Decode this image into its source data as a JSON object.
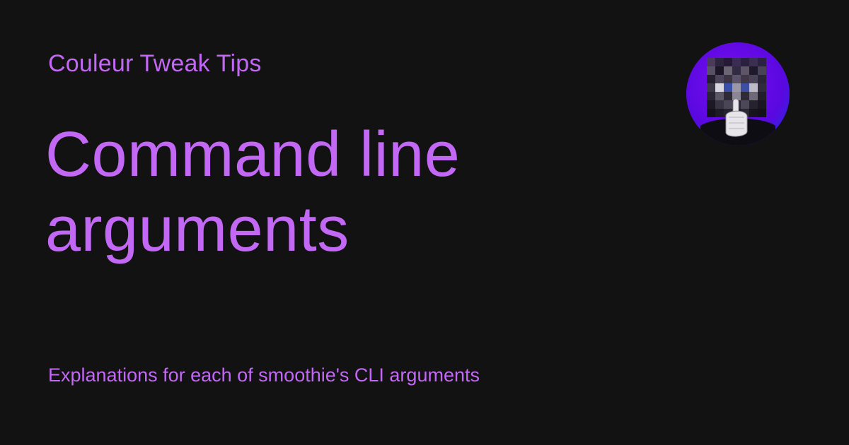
{
  "site": {
    "name": "Couleur Tweak Tips"
  },
  "article": {
    "title": "Command line arguments",
    "description": "Explanations for each of smoothie's CLI arguments"
  },
  "avatar": {
    "icon": "pixelated-shush-avatar-icon"
  },
  "colors": {
    "background": "#131213",
    "accent": "#c268f5",
    "avatar_ring": "#7a12f5"
  }
}
